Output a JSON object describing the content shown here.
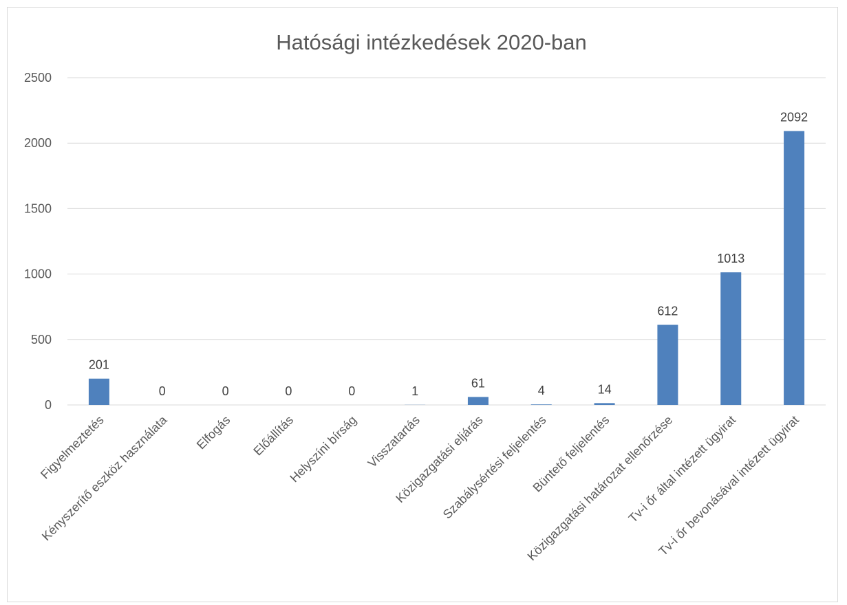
{
  "chart_data": {
    "type": "bar",
    "title": "Hatósági intézkedések 2020-ban",
    "categories": [
      "Figyelmeztetés",
      "Kényszerítő eszköz használata",
      "Elfogás",
      "Előállítás",
      "Helyszíni bírság",
      "Visszatartás",
      "Közigazgatási eljárás",
      "Szabálysértési feljelentés",
      "Büntető feljelentés",
      "Közigazgatási határozat ellenőrzése",
      "Tv-i őr által intézett ügyirat",
      "Tv-i őr bevonásával intézett ügyirat"
    ],
    "values": [
      201,
      0,
      0,
      0,
      0,
      1,
      61,
      4,
      14,
      612,
      1013,
      2092
    ],
    "ylim": [
      0,
      2500
    ],
    "yticks": [
      0,
      500,
      1000,
      1500,
      2000,
      2500
    ],
    "grid": true,
    "data_labels": true,
    "bar_color": "#4f81bd",
    "grid_color": "#d9d9d9",
    "text_color": "#595959"
  }
}
